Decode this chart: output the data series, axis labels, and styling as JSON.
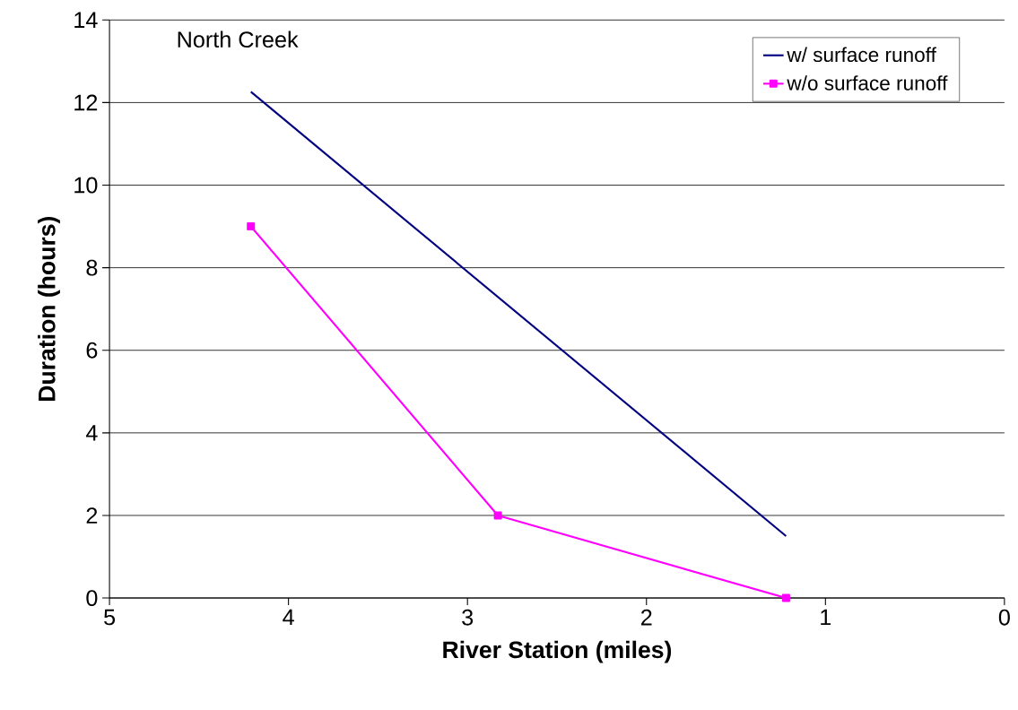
{
  "chart_data": {
    "type": "line",
    "xlabel": "River Station (miles)",
    "ylabel": "Duration (hours)",
    "annotations": [
      "North Creek"
    ],
    "xlim": [
      5,
      0
    ],
    "xticks": [
      5,
      4,
      3,
      2,
      1,
      0
    ],
    "ylim": [
      0,
      14
    ],
    "yticks": [
      0,
      2,
      4,
      6,
      8,
      10,
      12,
      14
    ],
    "grid": "y",
    "legend": "top right",
    "series": [
      {
        "name": "w/ surface runoff",
        "color": "#000080",
        "marker": "none",
        "x": [
          4.21,
          1.22
        ],
        "values": [
          12.26,
          1.5
        ]
      },
      {
        "name": "w/o surface runoff",
        "color": "#ff00ff",
        "marker": "square",
        "x": [
          4.21,
          2.83,
          1.22
        ],
        "values": [
          9.0,
          2.0,
          0.0
        ]
      }
    ]
  }
}
